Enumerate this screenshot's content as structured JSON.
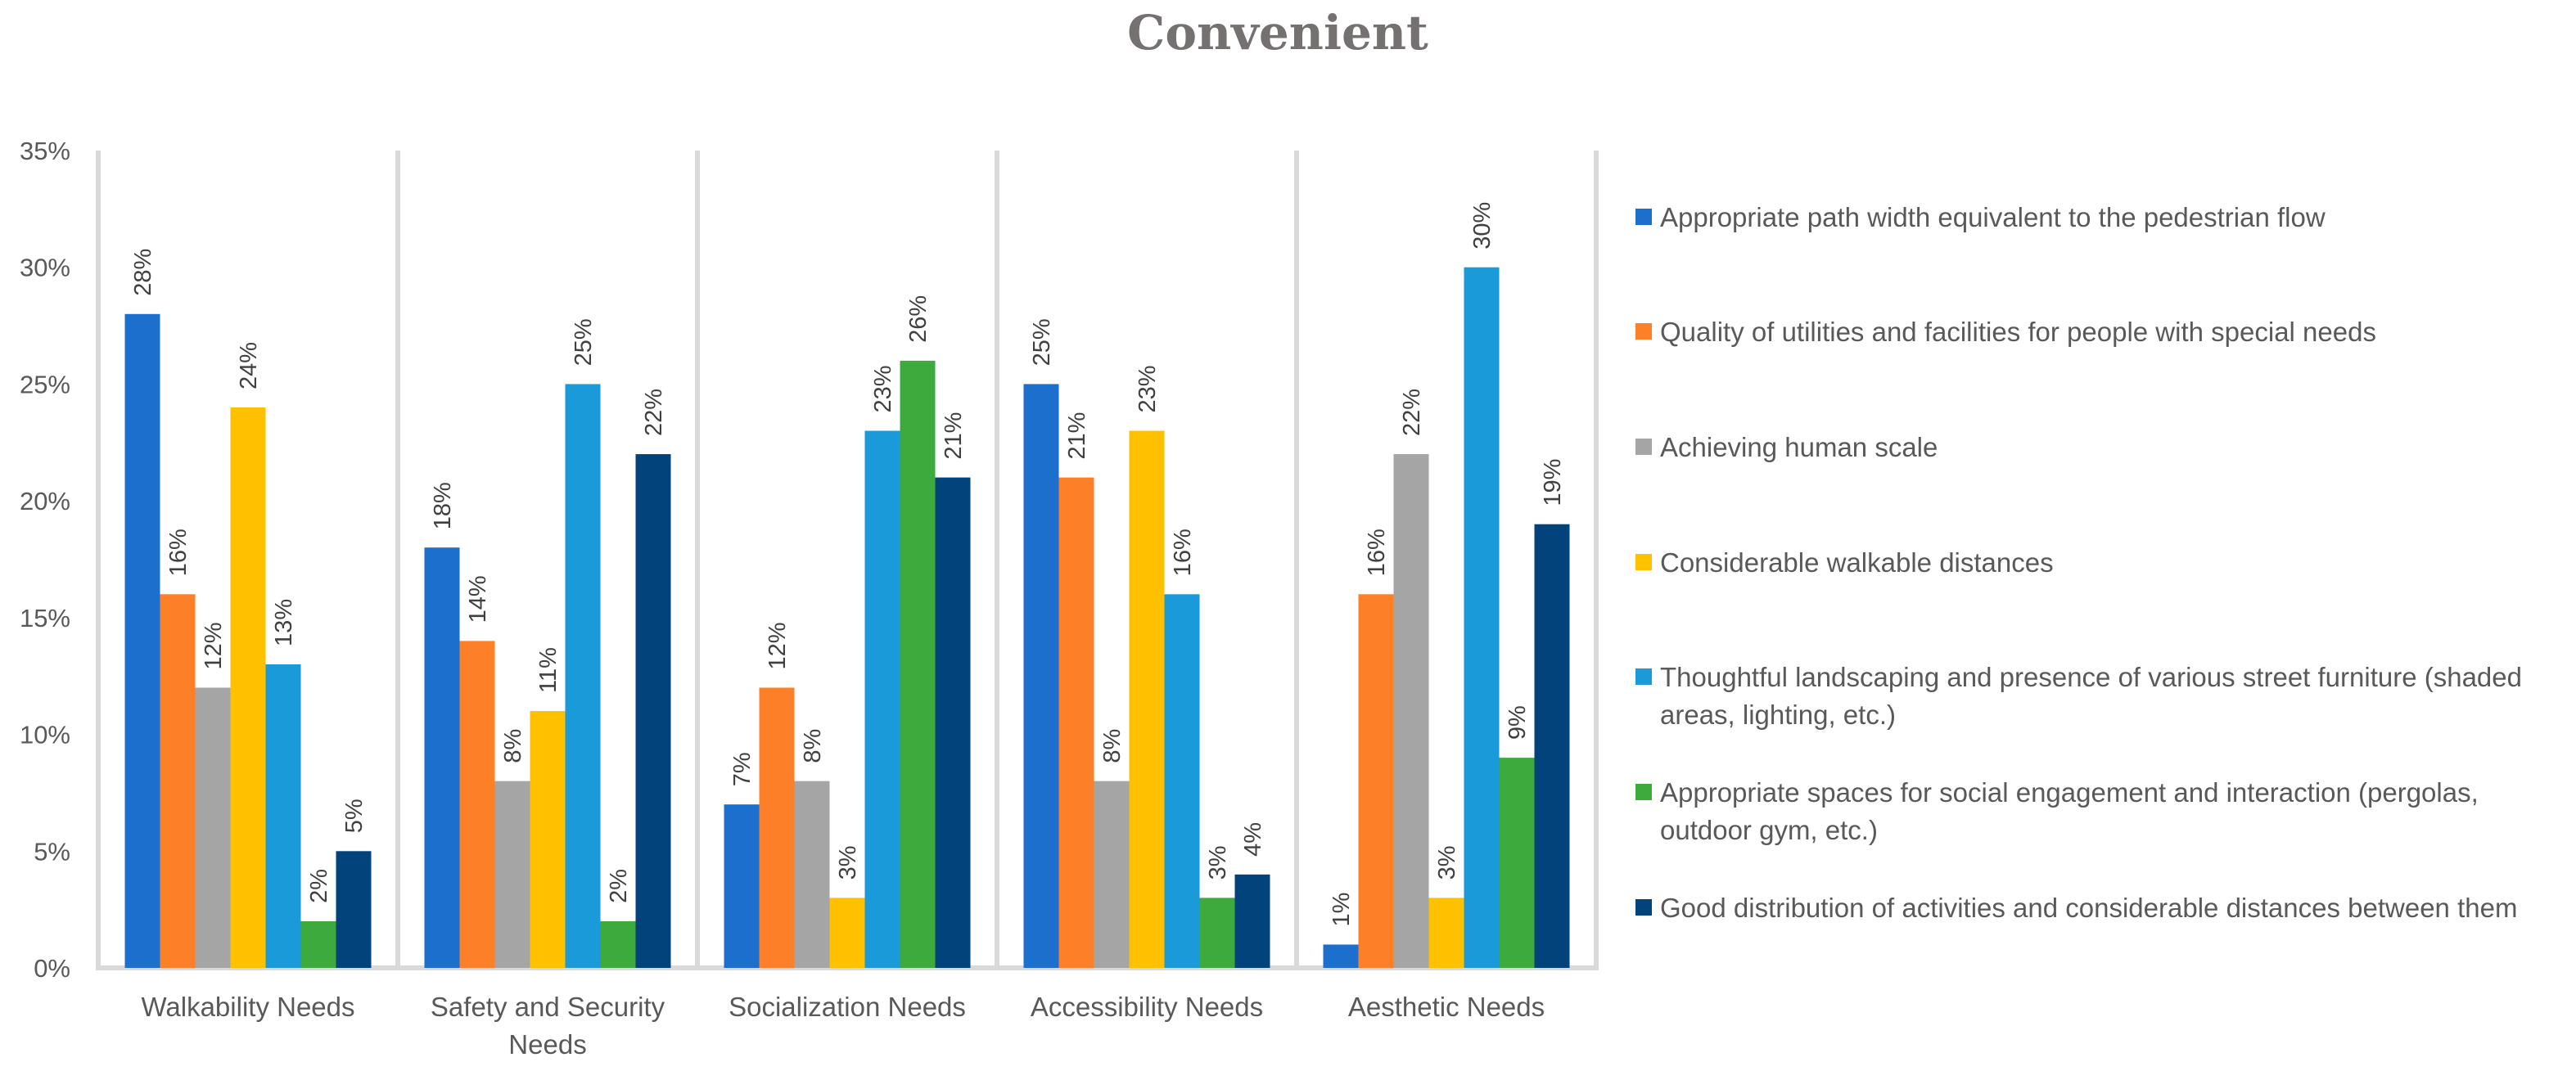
{
  "chart_data": {
    "type": "bar",
    "title": "Convenient",
    "xlabel": "",
    "ylabel": "",
    "ylim": [
      0,
      35
    ],
    "y_ticks": [
      "0%",
      "5%",
      "10%",
      "15%",
      "20%",
      "25%",
      "30%",
      "35%"
    ],
    "y_tick_values": [
      0,
      5,
      10,
      15,
      20,
      25,
      30,
      35
    ],
    "legend_position": "right",
    "categories": [
      [
        "Walkability Needs"
      ],
      [
        "Safety and Security",
        "Needs"
      ],
      [
        "Socialization Needs"
      ],
      [
        "Accessibility Needs"
      ],
      [
        "Aesthetic Needs"
      ]
    ],
    "series": [
      {
        "name": [
          "Appropriate path width equivalent to the pedestrian flow"
        ],
        "color": "#1c6fcc",
        "values": [
          28,
          18,
          7,
          25,
          1
        ],
        "labels": [
          "28%",
          "18%",
          "7%",
          "25%",
          "1%"
        ]
      },
      {
        "name": [
          "Quality of utilities and facilities for people with special needs"
        ],
        "color": "#fd7f28",
        "values": [
          16,
          14,
          12,
          21,
          16
        ],
        "labels": [
          "16%",
          "14%",
          "12%",
          "21%",
          "16%"
        ]
      },
      {
        "name": [
          "Achieving human scale"
        ],
        "color": "#a5a5a5",
        "values": [
          12,
          8,
          8,
          8,
          22
        ],
        "labels": [
          "12%",
          "8%",
          "8%",
          "8%",
          "22%"
        ]
      },
      {
        "name": [
          "Considerable walkable distances"
        ],
        "color": "#ffc000",
        "values": [
          24,
          11,
          3,
          23,
          3
        ],
        "labels": [
          "24%",
          "11%",
          "3%",
          "23%",
          "3%"
        ]
      },
      {
        "name": [
          "Thoughtful landscaping and presence of various street furniture (shaded",
          "areas, lighting, etc.)"
        ],
        "color": "#1a9ad9",
        "values": [
          13,
          25,
          23,
          16,
          30
        ],
        "labels": [
          "13%",
          "25%",
          "23%",
          "16%",
          "30%"
        ]
      },
      {
        "name": [
          "Appropriate spaces for social engagement and interaction (pergolas,",
          "outdoor gym, etc.)"
        ],
        "color": "#3caa3c",
        "values": [
          2,
          2,
          26,
          3,
          9
        ],
        "labels": [
          "2%",
          "2%",
          "26%",
          "3%",
          "9%"
        ]
      },
      {
        "name": [
          "Good distribution of activities and considerable distances between them"
        ],
        "color": "#03437c",
        "values": [
          5,
          22,
          21,
          4,
          19
        ],
        "labels": [
          "5%",
          "22%",
          "21%",
          "4%",
          "19%"
        ]
      }
    ]
  },
  "colors": {
    "title": "#767171",
    "axis_text": "#595959",
    "data_label": "#404040",
    "axis_line": "#d9d9d9"
  }
}
